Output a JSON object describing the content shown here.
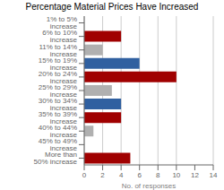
{
  "chart_data": {
    "type": "bar",
    "orientation": "horizontal",
    "title": "Percentage Material Prices Have Increased",
    "xlabel": "No. of responses",
    "categories": [
      "1% to 5% increase",
      "6% to 10% increase",
      "11% to 14% increase",
      "15% to 19% increase",
      "20% to 24% increase",
      "25% to 29% increase",
      "30% to 34% increase",
      "35% to 39% increase",
      "40% to 44% increase",
      "45% to 49% increase",
      "More than 50% increase"
    ],
    "values": [
      0,
      4,
      2,
      6,
      10,
      3,
      4,
      4,
      1,
      0,
      5
    ],
    "colors": [
      "#b0b0b0",
      "#a00000",
      "#b0b0b0",
      "#3060a0",
      "#a00000",
      "#b0b0b0",
      "#3060a0",
      "#a00000",
      "#b0b0b0",
      "#b0b0b0",
      "#a00000"
    ],
    "xlim": [
      0,
      14
    ],
    "xticks": [
      0,
      2,
      4,
      6,
      8,
      10,
      12,
      14
    ],
    "grid": true
  }
}
